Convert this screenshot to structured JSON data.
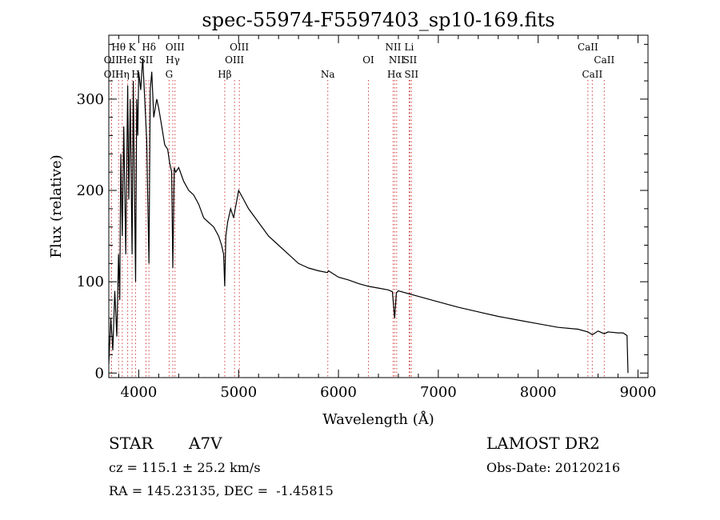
{
  "chart_data": {
    "type": "line",
    "title": "spec-55974-F5597403_sp10-169.fits",
    "xlabel": "Wavelength (Å)",
    "ylabel": "Flux (relative)",
    "xlim": [
      3700,
      9100
    ],
    "ylim": [
      -5,
      370
    ],
    "x_ticks": [
      4000,
      5000,
      6000,
      7000,
      8000,
      9000
    ],
    "y_ticks": [
      0,
      100,
      200,
      300
    ],
    "grid": false,
    "line_color": "#000000",
    "marker_line_color": "#d04040",
    "series": [
      {
        "x": [
          3700,
          3720,
          3740,
          3760,
          3780,
          3798,
          3810,
          3820,
          3835,
          3850,
          3870,
          3889,
          3900,
          3915,
          3933,
          3945,
          3955,
          3968,
          3980,
          3990,
          4000,
          4020,
          4040,
          4060,
          4080,
          4090,
          4102,
          4115,
          4130,
          4150,
          4180,
          4200,
          4230,
          4260,
          4290,
          4310,
          4330,
          4341,
          4355,
          4370,
          4400,
          4450,
          4500,
          4550,
          4600,
          4650,
          4700,
          4750,
          4800,
          4830,
          4850,
          4861,
          4872,
          4890,
          4920,
          4950,
          5000,
          5050,
          5100,
          5200,
          5300,
          5400,
          5500,
          5600,
          5700,
          5800,
          5890,
          5900,
          6000,
          6100,
          6200,
          6300,
          6400,
          6500,
          6540,
          6563,
          6580,
          6600,
          6700,
          6800,
          7000,
          7200,
          7400,
          7600,
          7800,
          8000,
          8200,
          8400,
          8498,
          8542,
          8600,
          8662,
          8700,
          8800,
          8850,
          8890,
          8900
        ],
        "y": [
          10,
          60,
          25,
          90,
          40,
          130,
          80,
          240,
          150,
          270,
          130,
          315,
          190,
          300,
          130,
          320,
          225,
          100,
          300,
          260,
          330,
          310,
          345,
          300,
          255,
          190,
          120,
          310,
          330,
          280,
          300,
          290,
          270,
          250,
          245,
          230,
          220,
          115,
          225,
          220,
          225,
          210,
          200,
          195,
          185,
          170,
          165,
          160,
          150,
          140,
          130,
          95,
          150,
          165,
          180,
          170,
          200,
          190,
          180,
          165,
          150,
          140,
          130,
          120,
          115,
          112,
          110,
          112,
          105,
          102,
          98,
          95,
          93,
          91,
          89,
          60,
          88,
          90,
          87,
          84,
          78,
          72,
          67,
          62,
          58,
          54,
          50,
          48,
          45,
          42,
          46,
          43,
          45,
          44,
          44,
          41,
          0
        ]
      }
    ],
    "line_markers": [
      {
        "label": "Hθ",
        "row": 1,
        "x": 3798
      },
      {
        "label": "K",
        "row": 1,
        "x": 3933
      },
      {
        "label": "Hδ",
        "row": 1,
        "x": 4102
      },
      {
        "label": "OIII",
        "row": 1,
        "x": 4363
      },
      {
        "label": "OIII",
        "row": 1,
        "x": 5007
      },
      {
        "label": "NII",
        "row": 1,
        "x": 6548
      },
      {
        "label": "Li",
        "row": 1,
        "x": 6708
      },
      {
        "label": "CaII",
        "row": 1,
        "x": 8498
      },
      {
        "label": "OII",
        "row": 2,
        "x": 3727
      },
      {
        "label": "HeI",
        "row": 2,
        "x": 3889
      },
      {
        "label": "SII",
        "row": 2,
        "x": 4072
      },
      {
        "label": "Hγ",
        "row": 2,
        "x": 4341
      },
      {
        "label": "OIII",
        "row": 2,
        "x": 4959
      },
      {
        "label": "OI",
        "row": 2,
        "x": 6300
      },
      {
        "label": "NII",
        "row": 2,
        "x": 6583
      },
      {
        "label": "SII",
        "row": 2,
        "x": 6716
      },
      {
        "label": "CaII",
        "row": 2,
        "x": 8662
      },
      {
        "label": "OII",
        "row": 3,
        "x": 3727
      },
      {
        "label": "Hη",
        "row": 3,
        "x": 3835
      },
      {
        "label": "H",
        "row": 3,
        "x": 3968
      },
      {
        "label": "G",
        "row": 3,
        "x": 4304
      },
      {
        "label": "Hβ",
        "row": 3,
        "x": 4861
      },
      {
        "label": "Na",
        "row": 3,
        "x": 5893
      },
      {
        "label": "Hα",
        "row": 3,
        "x": 6563
      },
      {
        "label": "SII",
        "row": 3,
        "x": 6731
      },
      {
        "label": "CaII",
        "row": 3,
        "x": 8542
      }
    ]
  },
  "info": {
    "object_type": "STAR",
    "subclass": "A7V",
    "survey": "LAMOST DR2",
    "cz": "cz = 115.1 ± 25.2 km/s",
    "obs_date": "Obs-Date: 20120216",
    "coords": "RA = 145.23135, DEC =  -1.45815"
  }
}
